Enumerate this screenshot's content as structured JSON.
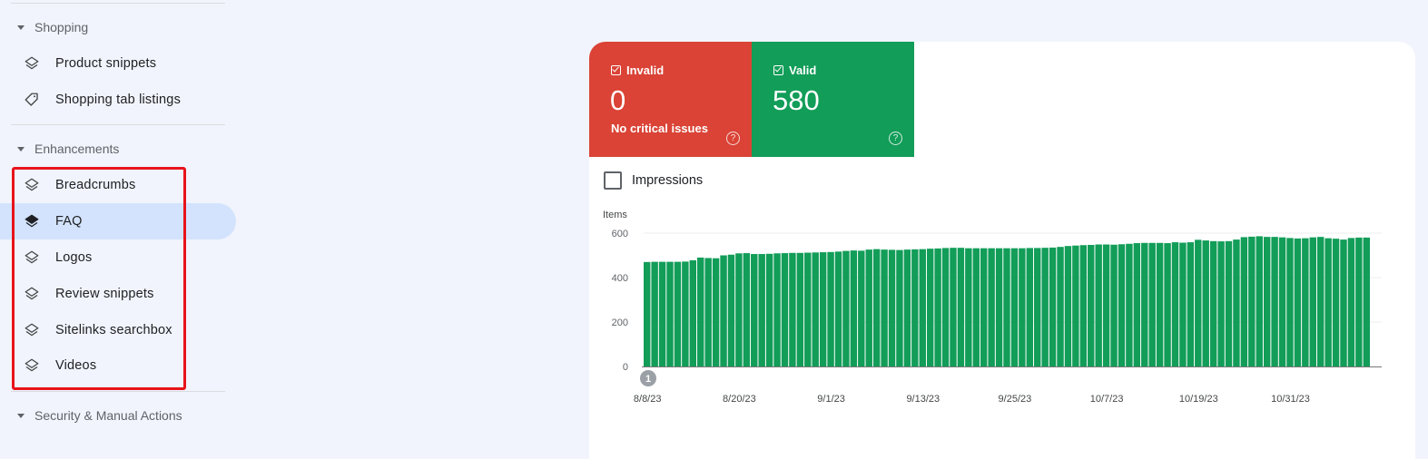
{
  "sidebar": {
    "sections": [
      {
        "label": "Shopping"
      },
      {
        "label": "Enhancements"
      },
      {
        "label": "Security & Manual Actions"
      }
    ],
    "shopping_items": [
      {
        "label": "Product snippets",
        "icon": "layers-icon"
      },
      {
        "label": "Shopping tab listings",
        "icon": "tag-icon"
      }
    ],
    "enhancement_items": [
      {
        "label": "Breadcrumbs",
        "icon": "layers-icon"
      },
      {
        "label": "FAQ",
        "icon": "layers-icon",
        "active": true
      },
      {
        "label": "Logos",
        "icon": "layers-icon"
      },
      {
        "label": "Review snippets",
        "icon": "layers-icon"
      },
      {
        "label": "Sitelinks searchbox",
        "icon": "layers-icon"
      },
      {
        "label": "Videos",
        "icon": "layers-icon"
      }
    ],
    "highlight_color": "#e8131b"
  },
  "status_tiles": {
    "invalid": {
      "label": "Invalid",
      "count": "0",
      "subtitle": "No critical issues",
      "color": "#da4336"
    },
    "valid": {
      "label": "Valid",
      "count": "580",
      "color": "#129d58"
    }
  },
  "impressions_toggle": {
    "label": "Impressions",
    "checked": false
  },
  "chart_data": {
    "type": "bar",
    "ylabel": "Items",
    "ylim": [
      0,
      600
    ],
    "yticks": [
      0,
      200,
      400,
      600
    ],
    "xtick_labels": [
      "8/8/23",
      "8/20/23",
      "9/1/23",
      "9/13/23",
      "9/25/23",
      "10/7/23",
      "10/19/23",
      "10/31/23"
    ],
    "annotation": "1",
    "bar_color": "#129d58",
    "grid": true,
    "x_start": "8/8/23",
    "values": [
      470,
      471,
      471,
      471,
      471,
      472,
      478,
      490,
      488,
      487,
      500,
      503,
      509,
      510,
      506,
      506,
      507,
      509,
      510,
      511,
      511,
      512,
      513,
      514,
      515,
      517,
      520,
      522,
      521,
      526,
      528,
      526,
      525,
      524,
      526,
      527,
      528,
      530,
      531,
      533,
      534,
      534,
      532,
      532,
      532,
      532,
      532,
      532,
      532,
      532,
      533,
      533,
      534,
      535,
      538,
      542,
      544,
      546,
      547,
      549,
      549,
      548,
      550,
      552,
      555,
      556,
      556,
      556,
      555,
      559,
      557,
      559,
      570,
      567,
      564,
      563,
      564,
      571,
      582,
      584,
      586,
      583,
      583,
      581,
      578,
      576,
      577,
      581,
      583,
      577,
      575,
      571,
      578,
      580,
      580
    ]
  }
}
